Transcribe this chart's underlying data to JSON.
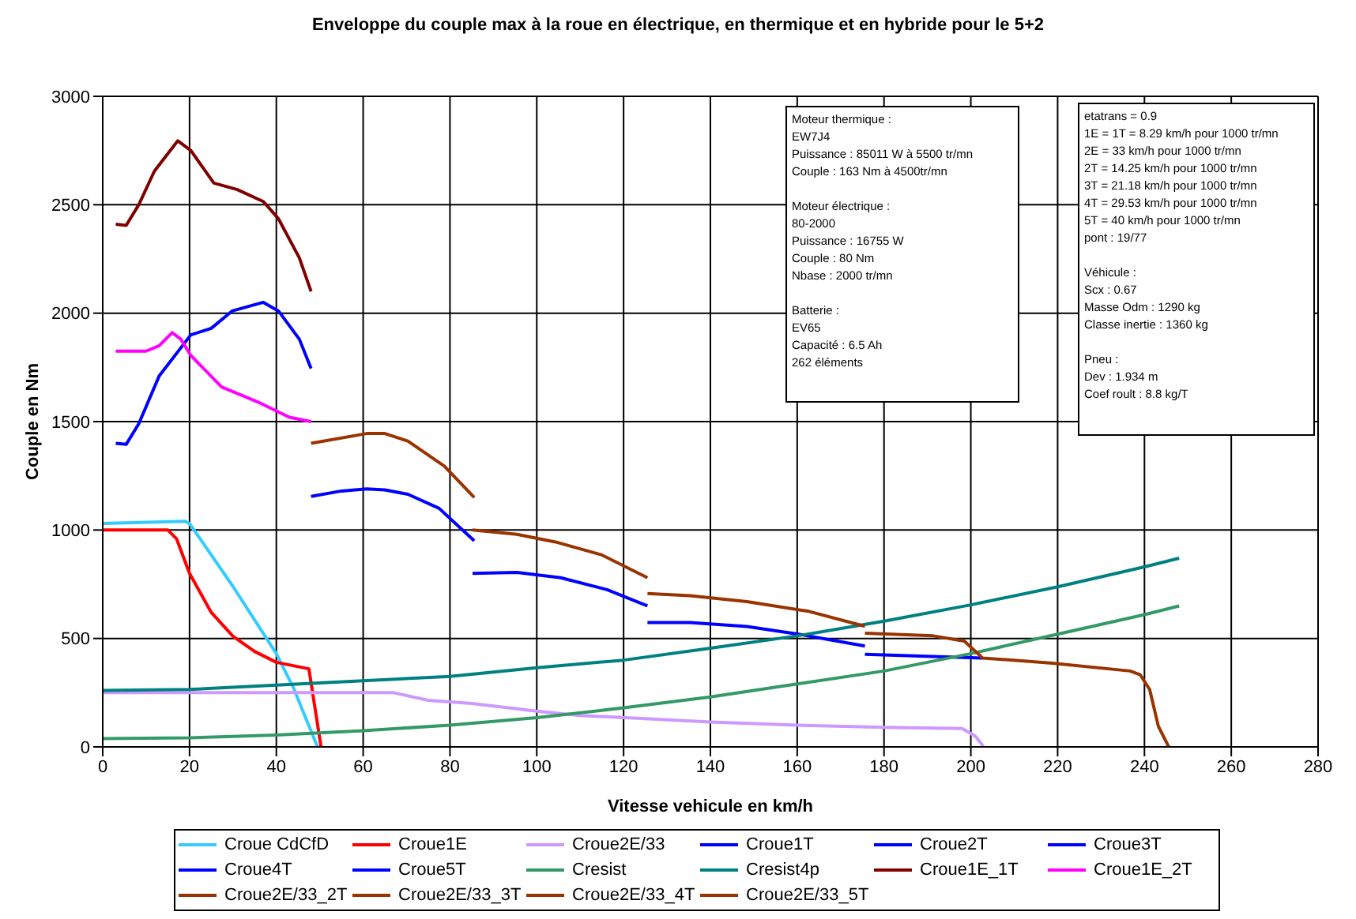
{
  "chart_data": {
    "type": "line",
    "title": "Enveloppe du couple max à la roue en électrique, en thermique et en hybride pour le 5+2",
    "xlabel": "Vitesse vehicule en km/h",
    "ylabel": "Couple en Nm",
    "xlim": [
      0,
      280
    ],
    "xticks": [
      0,
      20,
      40,
      60,
      80,
      100,
      120,
      140,
      160,
      180,
      200,
      220,
      240,
      260,
      280
    ],
    "ylim": [
      0,
      3000
    ],
    "yticks": [
      0,
      500,
      1000,
      1500,
      2000,
      2500,
      3000
    ],
    "grid": true,
    "legend": "bottom",
    "marker": "none",
    "annotations": [
      "Moteur thermique :\nEW7J4\nPuissance : 85011 W à 5500 tr/mn\nCouple : 163 Nm à 4500tr/mn\n\nMoteur électrique :\n80-2000\nPuissance : 16755 W\nCouple : 80 Nm\nNbase : 2000 tr/mn\n\nBatterie :\nEV65\nCapacité : 6.5 Ah\n262 éléments",
      "etatrans = 0.9\n1E = 1T = 8.29 km/h pour 1000 tr/mn\n2E = 33 km/h pour 1000 tr/mn\n2T = 14.25 km/h pour 1000 tr/mn\n3T = 21.18 km/h pour 1000 tr/mn\n4T = 29.53 km/h pour 1000 tr/mn\n5T = 40 km/h pour 1000 tr/mn\npont : 19/77\n\nVéhicule :\nScx : 0.67\nMasse Odm : 1290 kg\nClasse inertie : 1360 kg\n\nPneu :\nDev : 1.934 m\nCoef roult : 8.8 kg/T"
    ],
    "series": [
      {
        "name": "Croue CdCfD",
        "color": "#33ccff",
        "x": [
          0,
          19,
          20,
          30,
          40,
          44,
          46,
          49.5
        ],
        "values": [
          1030,
          1040,
          1030,
          740,
          430,
          270,
          170,
          0
        ]
      },
      {
        "name": "Croue1E",
        "color": "#ff0000",
        "x": [
          0,
          15,
          17,
          20,
          25,
          30,
          35,
          40,
          45,
          47.5,
          50.3
        ],
        "values": [
          1000,
          1000,
          960,
          800,
          620,
          510,
          440,
          390,
          370,
          360,
          0
        ]
      },
      {
        "name": "Croue2E/33",
        "color": "#cc99ff",
        "x": [
          0,
          20,
          40,
          60,
          67,
          75,
          85,
          100,
          110,
          125,
          140,
          160,
          180,
          198,
          201,
          203
        ],
        "values": [
          250,
          250,
          250,
          250,
          250,
          215,
          200,
          165,
          145,
          130,
          115,
          100,
          90,
          85,
          50,
          0
        ]
      },
      {
        "name": "Croue1T",
        "color": "#0000ff",
        "x": [
          3,
          5.4,
          8.3,
          13,
          20.3,
          25,
          29.8,
          37,
          40.5,
          45.3,
          48
        ],
        "values": [
          1400,
          1395,
          1490,
          1710,
          1900,
          1930,
          2010,
          2050,
          2010,
          1880,
          1745
        ]
      },
      {
        "name": "Croue2T",
        "color": "#0000ff",
        "x": [
          48,
          55,
          60.8,
          65,
          70.3,
          77.5,
          85.6
        ],
        "values": [
          1155,
          1180,
          1190,
          1185,
          1165,
          1100,
          950
        ]
      },
      {
        "name": "Croue3T",
        "color": "#0000ff",
        "x": [
          85.2,
          95.4,
          105.5,
          116.2,
          125.5
        ],
        "values": [
          800,
          805,
          780,
          725,
          650
        ]
      },
      {
        "name": "Croue4T",
        "color": "#0000ff",
        "x": [
          125.5,
          135.3,
          148.4,
          160.3,
          175.6
        ],
        "values": [
          573,
          573,
          555,
          520,
          465
        ]
      },
      {
        "name": "Croue5T",
        "color": "#0000ff",
        "x": [
          175.6,
          191.3,
          202.7
        ],
        "values": [
          427,
          417,
          410
        ]
      },
      {
        "name": "Cresist",
        "color": "#339966",
        "x": [
          0,
          20,
          40,
          60,
          80,
          100,
          120,
          140,
          160,
          180,
          200,
          220,
          240,
          248
        ],
        "values": [
          38,
          42,
          55,
          75,
          100,
          135,
          180,
          230,
          290,
          350,
          430,
          520,
          610,
          650
        ]
      },
      {
        "name": "Cresist4p",
        "color": "#008080",
        "x": [
          0,
          20,
          40,
          60,
          80,
          100,
          120,
          140,
          160,
          180,
          200,
          220,
          240,
          248
        ],
        "values": [
          260,
          265,
          285,
          305,
          325,
          365,
          400,
          455,
          512,
          580,
          655,
          738,
          830,
          870
        ]
      },
      {
        "name": "Croue1E_1T",
        "color": "#800000",
        "x": [
          3,
          5.4,
          8.3,
          11.9,
          17.3,
          20.3,
          25.6,
          31,
          37,
          40.5,
          45.3,
          48
        ],
        "values": [
          2410,
          2405,
          2500,
          2655,
          2795,
          2750,
          2600,
          2570,
          2515,
          2435,
          2255,
          2100
        ]
      },
      {
        "name": "Croue1E_2T",
        "color": "#ff00ff",
        "x": [
          3,
          10,
          13,
          16,
          18,
          20.3,
          27.4,
          35.8,
          43,
          48
        ],
        "values": [
          1825,
          1825,
          1850,
          1910,
          1880,
          1805,
          1660,
          1590,
          1520,
          1500
        ]
      },
      {
        "name": "Croue2E/33_2T",
        "color": "#993300",
        "x": [
          48,
          60.8,
          65,
          70.3,
          78.7,
          85.6
        ],
        "values": [
          1400,
          1445,
          1445,
          1410,
          1295,
          1150
        ]
      },
      {
        "name": "Croue2E/33_3T",
        "color": "#993300",
        "x": [
          85.2,
          95.4,
          104.3,
          115,
          125.5
        ],
        "values": [
          1000,
          980,
          945,
          885,
          780
        ]
      },
      {
        "name": "Croue2E/33_4T",
        "color": "#993300",
        "x": [
          125.5,
          135.3,
          148.4,
          162.7,
          175.6
        ],
        "values": [
          707,
          697,
          670,
          625,
          556
        ]
      },
      {
        "name": "Croue2E/33_5T",
        "color": "#993300",
        "x": [
          175.6,
          191.3,
          198.5,
          202.7,
          218.8,
          236.7,
          239,
          241.2,
          243.2,
          245.6
        ],
        "values": [
          524,
          512,
          488,
          410,
          386,
          350,
          333,
          265,
          95,
          0
        ]
      }
    ]
  }
}
